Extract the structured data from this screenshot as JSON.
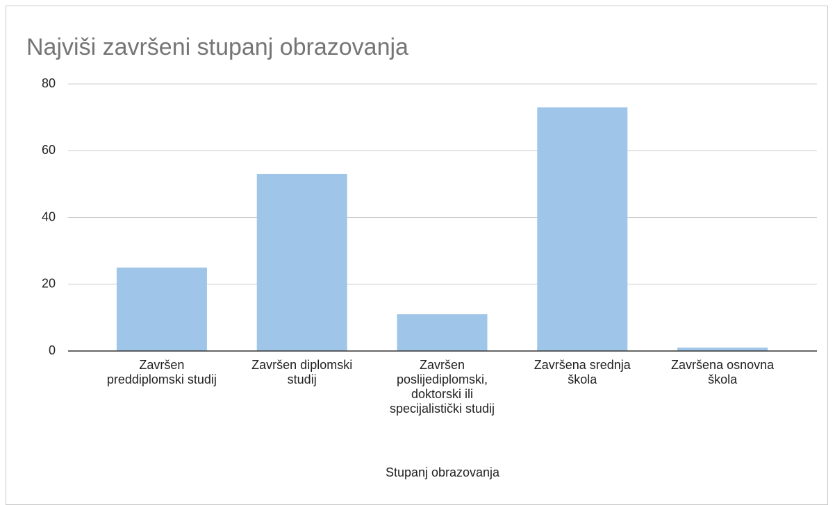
{
  "chart_data": {
    "type": "bar",
    "title": "Najviši završeni stupanj obrazovanja",
    "x_label": "Stupanj obrazovanja",
    "categories": [
      "Završen preddiplomski studij",
      "Završen diplomski studij",
      "Završen poslijediplomski, doktorski ili specijalistički studij",
      "Završena srednja škola",
      "Završena osnovna škola"
    ],
    "values": [
      25,
      53,
      11,
      73,
      1
    ],
    "color": "#9fc5e8",
    "ylim": [
      0,
      80
    ],
    "yticks": [
      0,
      20,
      40,
      60,
      80
    ],
    "grid": true
  }
}
